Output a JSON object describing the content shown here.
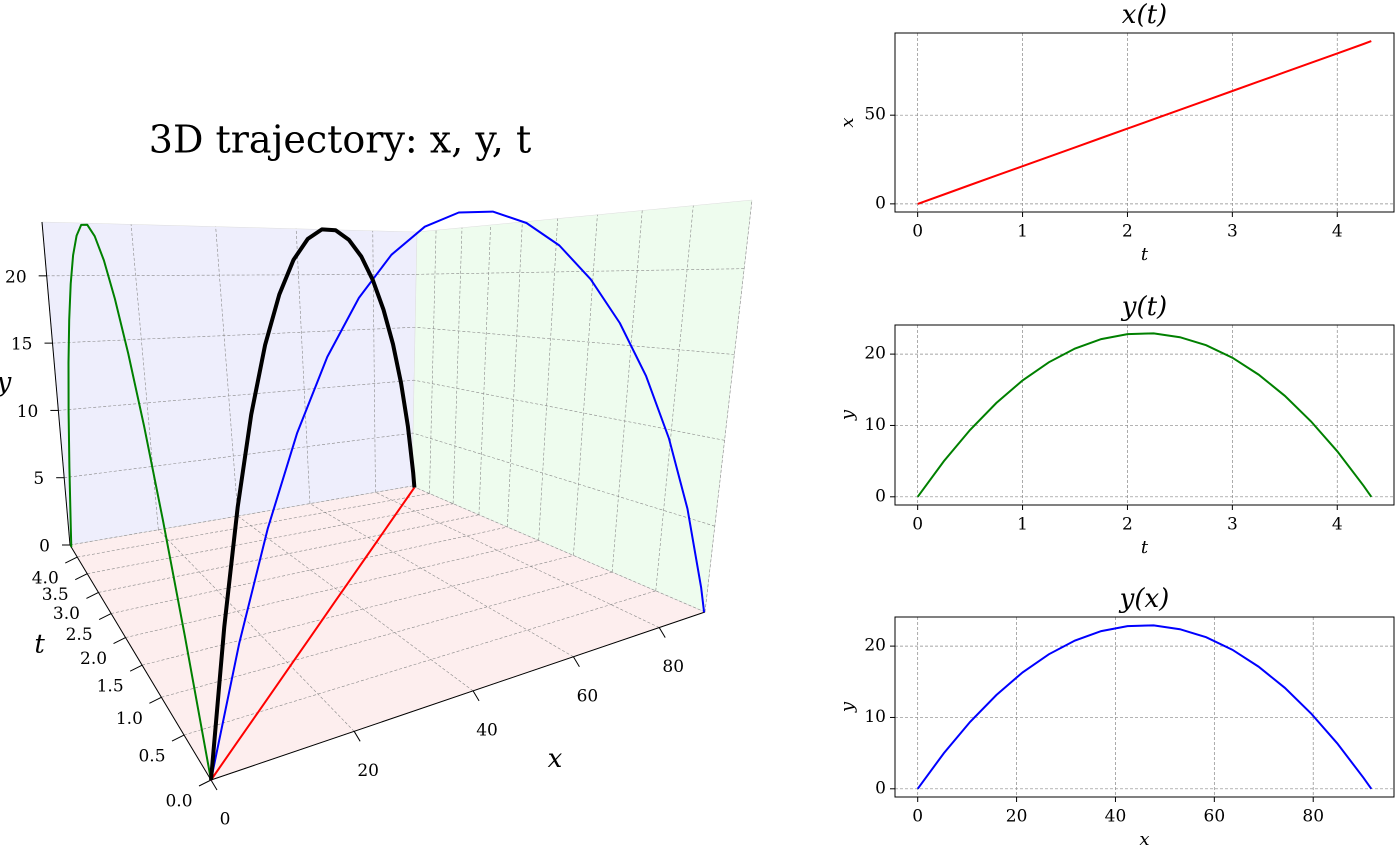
{
  "chart_data": [
    {
      "type": "line3d",
      "title": "3D trajectory: x, y, t",
      "x": [
        0,
        5.3,
        10.61,
        15.91,
        21.21,
        26.52,
        31.82,
        37.12,
        42.43,
        47.73,
        53.03,
        58.34,
        63.64,
        68.94,
        74.25,
        79.55,
        84.85,
        90.16,
        91.75
      ],
      "y": [
        0,
        5.0,
        9.38,
        13.15,
        16.31,
        18.85,
        20.78,
        22.1,
        22.81,
        22.9,
        22.37,
        21.25,
        19.49,
        17.13,
        14.16,
        10.57,
        6.37,
        1.56,
        0
      ],
      "z": [
        0,
        0.25,
        0.5,
        0.75,
        1,
        1.25,
        1.5,
        1.75,
        2,
        2.25,
        2.5,
        2.75,
        3,
        3.25,
        3.5,
        3.75,
        4,
        4.25,
        4.325
      ],
      "xlabel": "x",
      "ylabel": "y",
      "zlabel": "t",
      "xlim": [
        0,
        92
      ],
      "ylim": [
        0,
        24
      ],
      "zlim": [
        0,
        4.4
      ],
      "xticks": [
        0,
        20,
        40,
        60,
        80
      ],
      "yticks": [
        0,
        5,
        10,
        15,
        20
      ],
      "zticks": [
        {
          "value": 0,
          "label": "0.0"
        },
        0.5,
        {
          "value": 1,
          "label": "1.0"
        },
        1.5,
        {
          "value": 2,
          "label": "2.0"
        },
        2.5,
        {
          "value": 3,
          "label": "3.0"
        },
        3.5,
        {
          "value": 4,
          "label": "4.0"
        }
      ],
      "color": "#000000",
      "projection_colors": {
        "xy": "#0000ff",
        "zy": "#008000",
        "xz": "#ff0000"
      },
      "pane_colors": {
        "floor": "#fdeeee",
        "back": "#eeeefc",
        "side": "#eefcee"
      },
      "grid": true
    },
    {
      "type": "line",
      "title": "x(t)",
      "x": [
        0,
        0.25,
        0.5,
        0.75,
        1,
        1.25,
        1.5,
        1.75,
        2,
        2.25,
        2.5,
        2.75,
        3,
        3.25,
        3.5,
        3.75,
        4,
        4.25,
        4.325
      ],
      "values": [
        0,
        5.3,
        10.61,
        15.91,
        21.21,
        26.52,
        31.82,
        37.12,
        42.43,
        47.73,
        53.03,
        58.34,
        63.64,
        68.94,
        74.25,
        79.55,
        84.85,
        90.16,
        91.75
      ],
      "color": "#ff0000",
      "xlabel": "t",
      "ylabel": "x",
      "xlim": [
        -0.216,
        4.541
      ],
      "ylim": [
        -4.59,
        96.34
      ],
      "xticks": [
        0,
        1,
        2,
        3,
        4
      ],
      "yticks": [
        0,
        50
      ],
      "grid": true
    },
    {
      "type": "line",
      "title": "y(t)",
      "x": [
        0,
        0.25,
        0.5,
        0.75,
        1,
        1.25,
        1.5,
        1.75,
        2,
        2.25,
        2.5,
        2.75,
        3,
        3.25,
        3.5,
        3.75,
        4,
        4.25,
        4.325
      ],
      "values": [
        0,
        5.0,
        9.38,
        13.15,
        16.31,
        18.85,
        20.78,
        22.1,
        22.81,
        22.9,
        22.37,
        21.25,
        19.49,
        17.13,
        14.16,
        10.57,
        6.37,
        1.56,
        0
      ],
      "color": "#008000",
      "xlabel": "t",
      "ylabel": "y",
      "xlim": [
        -0.216,
        4.541
      ],
      "ylim": [
        -1.15,
        24.08
      ],
      "xticks": [
        0,
        1,
        2,
        3,
        4
      ],
      "yticks": [
        0,
        10,
        20
      ],
      "grid": true
    },
    {
      "type": "line",
      "title": "y(x)",
      "x": [
        0,
        5.3,
        10.61,
        15.91,
        21.21,
        26.52,
        31.82,
        37.12,
        42.43,
        47.73,
        53.03,
        58.34,
        63.64,
        68.94,
        74.25,
        79.55,
        84.85,
        90.16,
        91.75
      ],
      "values": [
        0,
        5.0,
        9.38,
        13.15,
        16.31,
        18.85,
        20.78,
        22.1,
        22.81,
        22.9,
        22.37,
        21.25,
        19.49,
        17.13,
        14.16,
        10.57,
        6.37,
        1.56,
        0
      ],
      "color": "#0000ff",
      "xlabel": "x",
      "ylabel": "y",
      "xlim": [
        -4.59,
        96.34
      ],
      "ylim": [
        -1.15,
        24.08
      ],
      "xticks": [
        0,
        20,
        40,
        60,
        80
      ],
      "yticks": [
        0,
        10,
        20
      ],
      "grid": true
    }
  ]
}
